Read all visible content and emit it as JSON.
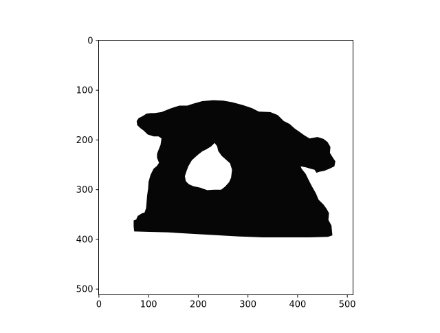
{
  "chart_data": {
    "type": "image",
    "title": "",
    "xlabel": "",
    "ylabel": "",
    "xlim": [
      -0.5,
      511.5
    ],
    "ylim": [
      511.5,
      -0.5
    ],
    "x_ticks": [
      0,
      100,
      200,
      300,
      400,
      500
    ],
    "y_ticks": [
      0,
      100,
      200,
      300,
      400,
      500
    ],
    "x_tick_labels": [
      "0",
      "100",
      "200",
      "300",
      "400",
      "500"
    ],
    "y_tick_labels": [
      "0",
      "100",
      "200",
      "300",
      "400",
      "500"
    ],
    "grid": false,
    "mask_color": "#060606",
    "background_color": "#ffffff",
    "mask_outline": [
      [
        76,
        162
      ],
      [
        80,
        156
      ],
      [
        88,
        152
      ],
      [
        96,
        147
      ],
      [
        104,
        146
      ],
      [
        112,
        146
      ],
      [
        126,
        144
      ],
      [
        136,
        140
      ],
      [
        146,
        136
      ],
      [
        162,
        131
      ],
      [
        178,
        131
      ],
      [
        190,
        127
      ],
      [
        208,
        122
      ],
      [
        230,
        120
      ],
      [
        250,
        121
      ],
      [
        268,
        124
      ],
      [
        290,
        130
      ],
      [
        308,
        136
      ],
      [
        322,
        143
      ],
      [
        345,
        144
      ],
      [
        360,
        150
      ],
      [
        372,
        162
      ],
      [
        384,
        168
      ],
      [
        394,
        177
      ],
      [
        404,
        184
      ],
      [
        414,
        191
      ],
      [
        424,
        197
      ],
      [
        440,
        194
      ],
      [
        452,
        198
      ],
      [
        460,
        204
      ],
      [
        466,
        214
      ],
      [
        465,
        226
      ],
      [
        470,
        234
      ],
      [
        476,
        243
      ],
      [
        474,
        253
      ],
      [
        464,
        258
      ],
      [
        454,
        262
      ],
      [
        444,
        264
      ],
      [
        438,
        266
      ],
      [
        434,
        260
      ],
      [
        426,
        258
      ],
      [
        416,
        255
      ],
      [
        406,
        253
      ],
      [
        408,
        258
      ],
      [
        416,
        268
      ],
      [
        422,
        280
      ],
      [
        428,
        292
      ],
      [
        437,
        308
      ],
      [
        442,
        320
      ],
      [
        452,
        330
      ],
      [
        458,
        338
      ],
      [
        463,
        347
      ],
      [
        462,
        361
      ],
      [
        468,
        372
      ],
      [
        470,
        392
      ],
      [
        461,
        395
      ],
      [
        424,
        396
      ],
      [
        380,
        396
      ],
      [
        330,
        396
      ],
      [
        280,
        394
      ],
      [
        210,
        390
      ],
      [
        140,
        386
      ],
      [
        71,
        384
      ],
      [
        70,
        374
      ],
      [
        70,
        362
      ],
      [
        75,
        360
      ],
      [
        78,
        353
      ],
      [
        86,
        348
      ],
      [
        92,
        346
      ],
      [
        95,
        337
      ],
      [
        96,
        325
      ],
      [
        97,
        312
      ],
      [
        99,
        298
      ],
      [
        100,
        284
      ],
      [
        104,
        270
      ],
      [
        110,
        258
      ],
      [
        117,
        252
      ],
      [
        121,
        246
      ],
      [
        117,
        236
      ],
      [
        117,
        228
      ],
      [
        120,
        220
      ],
      [
        124,
        210
      ],
      [
        126,
        197
      ],
      [
        120,
        193
      ],
      [
        110,
        193
      ],
      [
        98,
        189
      ],
      [
        90,
        181
      ],
      [
        83,
        176
      ],
      [
        77,
        170
      ]
    ],
    "hole_outline": [
      [
        226,
        213
      ],
      [
        233,
        206
      ],
      [
        238,
        213
      ],
      [
        240,
        222
      ],
      [
        247,
        232
      ],
      [
        256,
        240
      ],
      [
        264,
        247
      ],
      [
        268,
        260
      ],
      [
        266,
        276
      ],
      [
        262,
        285
      ],
      [
        254,
        294
      ],
      [
        246,
        300
      ],
      [
        232,
        300
      ],
      [
        218,
        301
      ],
      [
        204,
        296
      ],
      [
        190,
        293
      ],
      [
        181,
        289
      ],
      [
        175,
        283
      ],
      [
        173,
        273
      ],
      [
        176,
        264
      ],
      [
        180,
        253
      ],
      [
        187,
        241
      ],
      [
        198,
        231
      ],
      [
        208,
        223
      ],
      [
        216,
        219
      ]
    ]
  }
}
